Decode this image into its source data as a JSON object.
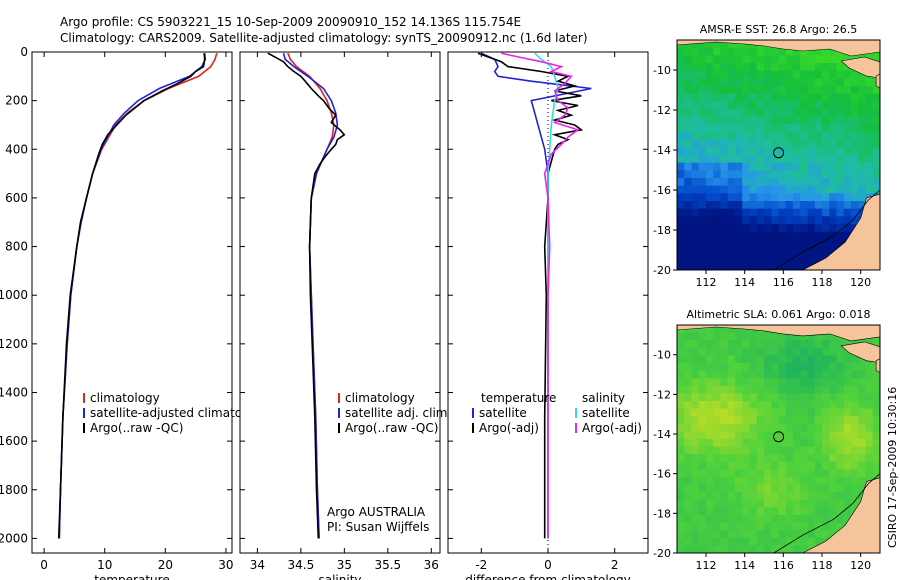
{
  "header": {
    "line1": "Argo profile: CS 5903221_15 10-Sep-2009 20090910_152 14.136S 115.754E",
    "line2": "Climatology: CARS2009. Satellite-adjusted climatology: synTS_20090912.nc (1.6d later)"
  },
  "footer": {
    "stamp": "CSIRO 17-Sep-2009 10:30:16"
  },
  "colors": {
    "climatology": "#dd2222",
    "satellite": "#2222dd",
    "argo": "#000000",
    "sal_satellite": "#33dddd",
    "sal_argo": "#ee22ee",
    "land": "#f5c49a"
  },
  "chart_data": [
    {
      "id": "temperature",
      "type": "line",
      "xlabel": "temperature",
      "ylabel": "",
      "xlim": [
        -2,
        31
      ],
      "ylim": [
        2060,
        0
      ],
      "xticks": [
        "0",
        "10",
        "20",
        "30"
      ],
      "xtick_vals": [
        0,
        10,
        20,
        30
      ],
      "yticks": [
        "0",
        "200",
        "400",
        "600",
        "800",
        "1000",
        "1200",
        "1400",
        "1600",
        "1800",
        "2000"
      ],
      "ytick_vals": [
        0,
        200,
        400,
        600,
        800,
        1000,
        1200,
        1400,
        1600,
        1800,
        2000
      ],
      "legend": [
        "climatology",
        "satellite-adjusted climatology",
        "Argo(..raw -QC)"
      ],
      "legend_position": "lower-right",
      "series": [
        {
          "name": "climatology",
          "color": "#dd2222",
          "depth": [
            5,
            30,
            60,
            100,
            150,
            200,
            250,
            300,
            400,
            500,
            600,
            700,
            800,
            1000,
            1200,
            1500,
            1800,
            2000
          ],
          "values": [
            28.5,
            28.2,
            27.5,
            25.5,
            20.5,
            16.5,
            13.8,
            11.8,
            9.5,
            8.0,
            7.0,
            6.1,
            5.4,
            4.4,
            3.8,
            3.1,
            2.7,
            2.5
          ]
        },
        {
          "name": "satellite-adjusted climatology",
          "color": "#2222dd",
          "depth": [
            5,
            30,
            60,
            100,
            150,
            200,
            250,
            300,
            400,
            500,
            600,
            700,
            800,
            1000,
            1200,
            1500,
            1800,
            2000
          ],
          "values": [
            26.5,
            26.6,
            26.0,
            24.0,
            19.0,
            15.5,
            13.3,
            11.5,
            9.4,
            8.0,
            7.0,
            6.1,
            5.4,
            4.4,
            3.8,
            3.1,
            2.7,
            2.5
          ]
        },
        {
          "name": "Argo(..raw -QC)",
          "color": "#000000",
          "depth": [
            5,
            30,
            60,
            80,
            100,
            130,
            160,
            200,
            230,
            260,
            300,
            340,
            380,
            420,
            500,
            600,
            700,
            800,
            1000,
            1200,
            1500,
            1800,
            2000
          ],
          "values": [
            26.4,
            26.5,
            26.3,
            25.0,
            24.2,
            22.0,
            19.5,
            16.5,
            15.0,
            13.5,
            12.0,
            10.5,
            9.6,
            9.0,
            8.0,
            7.0,
            6.0,
            5.4,
            4.3,
            3.7,
            3.1,
            2.7,
            2.4
          ]
        }
      ]
    },
    {
      "id": "salinity",
      "type": "line",
      "xlabel": "salinity",
      "ylabel": "",
      "xlim": [
        33.8,
        36.1
      ],
      "ylim": [
        2060,
        0
      ],
      "xticks": [
        "34",
        "34.5",
        "35",
        "35.5",
        "36"
      ],
      "xtick_vals": [
        34,
        34.5,
        35,
        35.5,
        36
      ],
      "legend": [
        "climatology",
        "satellite adj. clim.",
        "Argo(..raw -QC)"
      ],
      "legend_position": "lower-right",
      "annotations": [
        "Argo AUSTRALIA",
        "PI: Susan Wijffels"
      ],
      "series": [
        {
          "name": "climatology",
          "color": "#dd2222",
          "depth": [
            5,
            30,
            60,
            100,
            150,
            200,
            250,
            300,
            350,
            400,
            450,
            500,
            600,
            800,
            1000,
            1200,
            1500,
            1800,
            2000
          ],
          "values": [
            34.35,
            34.38,
            34.45,
            34.6,
            34.72,
            34.8,
            34.85,
            34.88,
            34.86,
            34.8,
            34.74,
            34.68,
            34.62,
            34.6,
            34.62,
            34.64,
            34.67,
            34.69,
            34.71
          ]
        },
        {
          "name": "satellite adj. clim.",
          "color": "#2222dd",
          "depth": [
            5,
            30,
            60,
            100,
            150,
            200,
            250,
            300,
            350,
            400,
            450,
            500,
            600,
            800,
            1000,
            1200,
            1500,
            1800,
            2000
          ],
          "values": [
            34.3,
            34.32,
            34.42,
            34.58,
            34.76,
            34.85,
            34.9,
            34.92,
            34.88,
            34.8,
            34.74,
            34.68,
            34.62,
            34.6,
            34.62,
            34.64,
            34.67,
            34.69,
            34.71
          ]
        },
        {
          "name": "Argo(..raw -QC)",
          "color": "#000000",
          "depth": [
            5,
            20,
            40,
            60,
            80,
            100,
            120,
            150,
            180,
            200,
            230,
            260,
            290,
            320,
            340,
            360,
            380,
            400,
            430,
            460,
            500,
            600,
            800,
            1000,
            1200,
            1500,
            1800,
            2000
          ],
          "values": [
            34.12,
            34.2,
            34.3,
            34.35,
            34.42,
            34.5,
            34.55,
            34.62,
            34.7,
            34.76,
            34.82,
            34.9,
            34.85,
            34.95,
            35.0,
            34.92,
            34.9,
            34.85,
            34.78,
            34.72,
            34.66,
            34.62,
            34.6,
            34.61,
            34.63,
            34.66,
            34.68,
            34.7
          ]
        }
      ]
    },
    {
      "id": "difference",
      "type": "line",
      "xlabel": "difference from climatology",
      "ylabel": "",
      "xlim": [
        -3,
        3
      ],
      "ylim": [
        2060,
        0
      ],
      "xticks": [
        "-2",
        "0",
        "2"
      ],
      "xtick_vals": [
        -2,
        0,
        2
      ],
      "legend_headers": [
        "temperature",
        "salinity"
      ],
      "legend": [
        "satellite",
        "Argo(-adj)",
        "satellite",
        "Argo(-adj)"
      ],
      "legend_position": "lower-right",
      "series": [
        {
          "name": "temperature satellite",
          "color": "#2222dd",
          "depth": [
            5,
            30,
            60,
            80,
            100,
            120,
            150,
            200,
            250,
            300,
            400,
            500,
            600,
            800,
            1000,
            1500,
            2000
          ],
          "values": [
            -2.0,
            -1.6,
            -1.5,
            -1.6,
            -1.5,
            -0.5,
            1.3,
            -0.5,
            -0.4,
            -0.3,
            -0.1,
            0,
            0,
            0,
            0,
            0,
            0
          ]
        },
        {
          "name": "temperature Argo(-adj)",
          "color": "#000000",
          "depth": [
            5,
            20,
            40,
            60,
            80,
            100,
            120,
            140,
            160,
            180,
            200,
            220,
            240,
            260,
            280,
            300,
            320,
            340,
            360,
            380,
            400,
            450,
            500,
            600,
            800,
            1000,
            1500,
            2000
          ],
          "values": [
            -2.1,
            -1.8,
            -1.4,
            -1.2,
            -0.2,
            0.6,
            0.3,
            0.8,
            0.2,
            1.0,
            0.1,
            0.9,
            0.3,
            0.7,
            0.2,
            0.8,
            1.0,
            0.2,
            0.6,
            0.3,
            0.2,
            0.1,
            0,
            0,
            -0.1,
            -0.05,
            -0.1,
            -0.1
          ]
        },
        {
          "name": "salinity satellite",
          "color": "#33dddd",
          "depth": [
            5,
            30,
            60,
            100,
            150,
            200,
            300,
            400,
            500,
            600,
            800,
            1000,
            1500,
            2000
          ],
          "values": [
            -0.4,
            -0.2,
            0.1,
            0.2,
            0.3,
            0.2,
            0.1,
            0.05,
            0,
            0,
            0,
            0,
            0,
            0
          ]
        },
        {
          "name": "salinity Argo(-adj)",
          "color": "#ee22ee",
          "depth": [
            5,
            20,
            40,
            60,
            80,
            100,
            130,
            160,
            200,
            230,
            260,
            290,
            320,
            350,
            380,
            420,
            460,
            500,
            600,
            800,
            1000,
            1500,
            2000
          ],
          "values": [
            -1.4,
            -0.9,
            -0.2,
            0.4,
            0.1,
            0.7,
            0.5,
            0.2,
            0.3,
            0.6,
            0.5,
            0.2,
            0.9,
            0.6,
            0.4,
            0.1,
            0,
            -0.1,
            0,
            0.05,
            0,
            0,
            0
          ]
        }
      ]
    },
    {
      "id": "sst-map",
      "type": "heatmap",
      "title": "AMSR-E SST: 26.8 Argo: 26.5",
      "xlim": [
        110.5,
        121
      ],
      "ylim": [
        -20,
        -8.5
      ],
      "xticks": [
        "112",
        "114",
        "116",
        "118",
        "120"
      ],
      "xtick_vals": [
        112,
        114,
        116,
        118,
        120
      ],
      "yticks": [
        "-10",
        "-12",
        "-14",
        "-16",
        "-18",
        "-20"
      ],
      "ytick_vals": [
        -10,
        -12,
        -14,
        -16,
        -18,
        -20
      ],
      "argo_position": [
        115.754,
        -14.136
      ]
    },
    {
      "id": "sla-map",
      "type": "heatmap",
      "title": "Altimetric SLA: 0.061 Argo: 0.018",
      "xlim": [
        110.5,
        121
      ],
      "ylim": [
        -20,
        -8.5
      ],
      "xticks": [
        "112",
        "114",
        "116",
        "118",
        "120"
      ],
      "xtick_vals": [
        112,
        114,
        116,
        118,
        120
      ],
      "yticks": [
        "-10",
        "-12",
        "-14",
        "-16",
        "-18",
        "-20"
      ],
      "ytick_vals": [
        -10,
        -12,
        -14,
        -16,
        -18,
        -20
      ],
      "argo_position": [
        115.754,
        -14.136
      ]
    }
  ]
}
